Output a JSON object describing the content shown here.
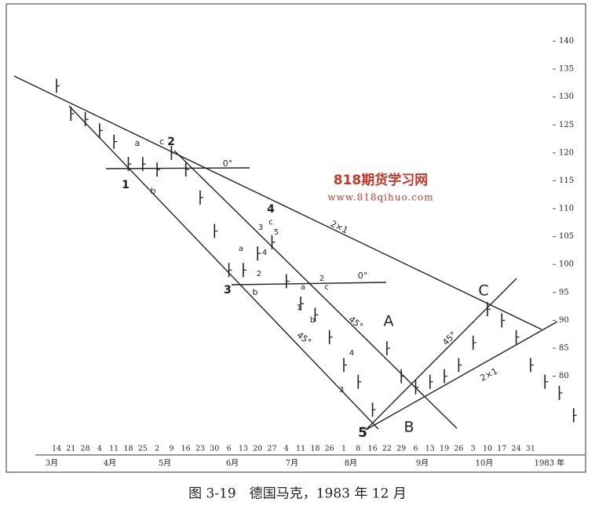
{
  "chart_data": {
    "type": "price-bars",
    "caption": "图 3-19　德国马克，1983 年 12 月",
    "watermark": "818期货学习网",
    "watermark_url": "www.818qihuo.com",
    "categories": [
      "14",
      "21",
      "28",
      "4",
      "11",
      "18",
      "25",
      "2",
      "9",
      "16",
      "23",
      "30",
      "6",
      "13",
      "20",
      "27",
      "4",
      "11",
      "18",
      "26",
      "1",
      "8",
      "16",
      "22",
      "29",
      "6",
      "13",
      "19",
      "26",
      "3",
      "10",
      "17",
      "24",
      "31",
      null,
      null,
      null
    ],
    "month_labels": [
      "3月",
      "4月",
      "5月",
      "6月",
      "7月",
      "8月",
      "9月",
      "10月",
      "1983 年"
    ],
    "values": [
      132,
      127,
      126,
      124,
      122,
      118,
      118,
      117,
      120,
      117,
      112,
      106,
      99,
      99,
      102,
      104,
      97,
      93,
      91,
      87,
      82,
      79,
      74,
      85,
      80,
      78,
      79,
      80,
      82,
      86,
      92,
      90,
      87,
      82,
      79,
      77,
      73
    ],
    "color": "#222222",
    "ylim": [
      68,
      144
    ],
    "yticks": [
      80,
      85,
      90,
      95,
      100,
      105,
      110,
      115,
      120,
      125,
      130,
      135,
      140
    ],
    "annotations": [
      "a",
      "c",
      "2",
      "1",
      "b",
      "0°",
      "4",
      "3",
      "c",
      "5",
      "a",
      "4",
      "2",
      "3",
      "b",
      "2×1",
      "2",
      "0°",
      "a",
      "c",
      "1",
      "b",
      "45°",
      "45°",
      "A",
      "4",
      "3",
      "5",
      "B",
      "C",
      "45°",
      "2×1"
    ]
  }
}
